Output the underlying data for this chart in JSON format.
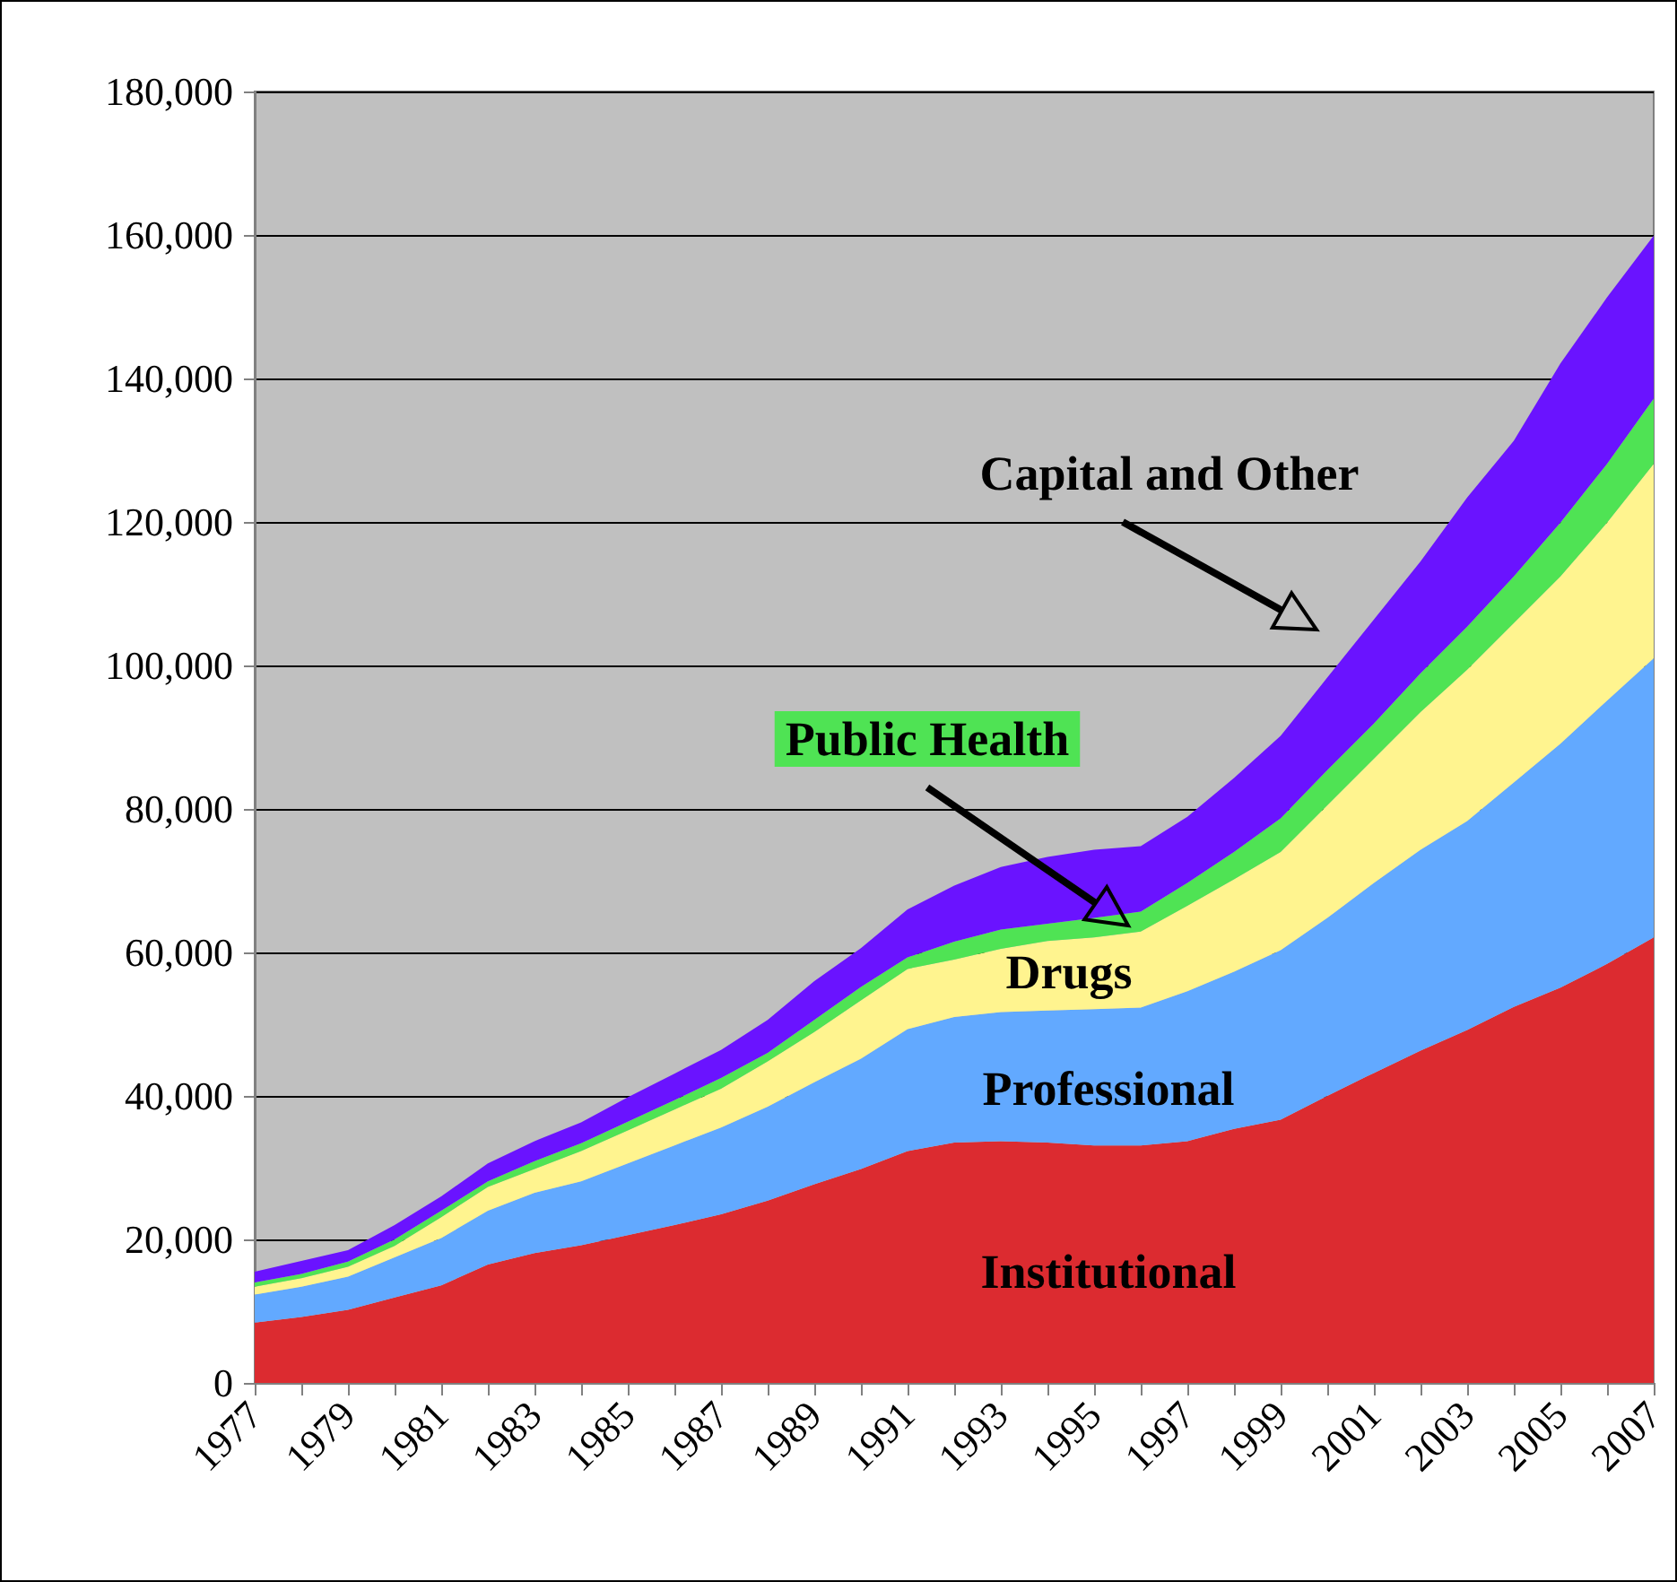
{
  "chart_data": {
    "type": "area",
    "stacked": true,
    "categories": [
      "1977",
      null,
      "1979",
      null,
      "1981",
      null,
      "1983",
      null,
      "1985",
      null,
      "1987",
      null,
      "1989",
      null,
      "1991",
      null,
      "1993",
      null,
      "1995",
      null,
      "1997",
      null,
      "1999",
      null,
      "2001",
      null,
      "2003",
      null,
      "2005",
      null,
      "2007"
    ],
    "series": [
      {
        "name": "Institutional",
        "color": "#dc2b30",
        "values": [
          8400,
          9200,
          10200,
          11900,
          13600,
          16500,
          18100,
          19200,
          20600,
          22000,
          23500,
          25400,
          27700,
          29800,
          32300,
          33500,
          33700,
          33500,
          33100,
          33100,
          33700,
          35400,
          36700,
          40000,
          43200,
          46300,
          49200,
          52400,
          55100,
          58400,
          62100
        ]
      },
      {
        "name": "Professional",
        "color": "#62a9ff",
        "values": [
          3900,
          4200,
          4600,
          5600,
          6600,
          7500,
          8400,
          8900,
          10000,
          11100,
          12100,
          13100,
          14200,
          15400,
          17000,
          17500,
          18000,
          18400,
          19000,
          19200,
          20900,
          21900,
          23600,
          24800,
          26500,
          28000,
          29100,
          31300,
          34000,
          36700,
          38900
        ]
      },
      {
        "name": "Drugs",
        "color": "#fff48f",
        "values": [
          1100,
          1200,
          1400,
          1600,
          2900,
          3300,
          3300,
          4200,
          4600,
          5000,
          5400,
          6300,
          7000,
          8100,
          8400,
          8000,
          8800,
          9700,
          10000,
          10600,
          11900,
          12900,
          13700,
          15700,
          17300,
          19200,
          21100,
          22200,
          23300,
          24800,
          27100
        ]
      },
      {
        "name": "Public Health",
        "color": "#4fe354",
        "values": [
          600,
          600,
          700,
          900,
          900,
          800,
          1100,
          1100,
          1200,
          1300,
          1500,
          1200,
          1700,
          1900,
          1600,
          2500,
          2700,
          2400,
          2700,
          2800,
          3200,
          3800,
          4700,
          4900,
          4900,
          5400,
          6000,
          6500,
          7500,
          8200,
          9100
        ]
      },
      {
        "name": "Capital and Other",
        "color": "#6a13ff",
        "values": [
          1500,
          1800,
          1600,
          2000,
          2000,
          2500,
          2800,
          2900,
          3400,
          3700,
          3900,
          4600,
          5400,
          5400,
          6700,
          7800,
          8700,
          9300,
          9500,
          9100,
          9200,
          10300,
          11500,
          12900,
          14500,
          15600,
          18000,
          18900,
          22200,
          23200,
          22700
        ]
      }
    ],
    "ylim": [
      0,
      180000
    ],
    "yticks": [
      0,
      {
        "value": 20000,
        "label": "20,000"
      },
      {
        "value": 40000,
        "label": "40,000"
      },
      {
        "value": 60000,
        "label": "60,000"
      },
      {
        "value": 80000,
        "label": "80,000"
      },
      {
        "value": 100000,
        "label": "100,000"
      },
      {
        "value": 120000,
        "label": "120,000"
      },
      {
        "value": 140000,
        "label": "140,000"
      },
      {
        "value": 160000,
        "label": "160,000"
      },
      {
        "value": 180000,
        "label": "180,000"
      }
    ],
    "grid": "y",
    "legend": false
  }
}
